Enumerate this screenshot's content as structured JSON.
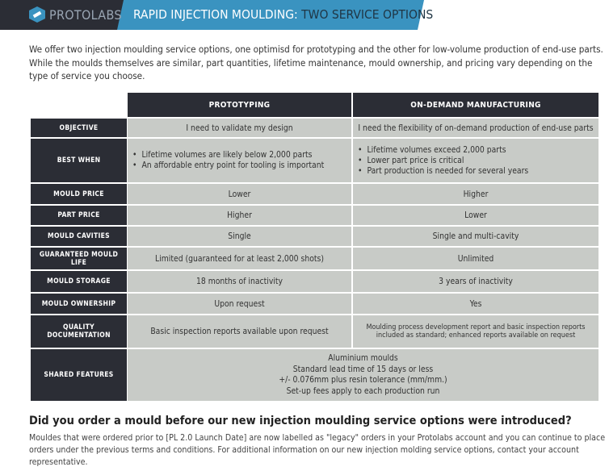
{
  "header": {
    "brand": "PROTOLABS",
    "title_main": "RAPID INJECTION MOULDING: ",
    "title_sub": "TWO SERVICE OPTIONS"
  },
  "intro": "We offer two injection moulding service options, one optimisd for prototyping and the other for low-volume production of end-use parts. While the moulds themselves are similar, part quantities, lifetime maintenance, mould ownership, and pricing vary depending on the type of service you choose.",
  "table": {
    "columns": [
      "PROTOTYPING",
      "ON-DEMAND MANUFACTURING"
    ],
    "rows": [
      {
        "label": "OBJECTIVE",
        "proto": "I need to validate my design",
        "od": "I need the flexibility of on-demand production of end-use parts"
      },
      {
        "label": "BEST WHEN",
        "proto_list": [
          "Lifetime volumes are likely below 2,000 parts",
          "An affordable entry point for tooling is important"
        ],
        "od_list": [
          "Lifetime volumes exceed 2,000 parts",
          "Lower part price is critical",
          "Part production is needed for several years"
        ]
      },
      {
        "label": "MOULD PRICE",
        "proto": "Lower",
        "od": "Higher"
      },
      {
        "label": "PART PRICE",
        "proto": "Higher",
        "od": "Lower"
      },
      {
        "label": "MOULD CAVITIES",
        "proto": "Single",
        "od": "Single and multi-cavity"
      },
      {
        "label": "GUARANTEED MOULD LIFE",
        "proto": "Limited (guaranteed for at least 2,000 shots)",
        "od": "Unlimited"
      },
      {
        "label": "MOULD STORAGE",
        "proto": "18 months of inactivity",
        "od": "3 years of inactivity"
      },
      {
        "label": "MOULD OWNERSHIP",
        "proto": "Upon request",
        "od": "Yes"
      },
      {
        "label": "QUALITY DOCUMENTATION",
        "proto": "Basic inspection reports available upon request",
        "od": "Moulding process development report and basic inspection reports included as standard; enhanced reports available on request"
      },
      {
        "label": "SHARED FEATURES",
        "shared": [
          "Aluminium moulds",
          "Standard lead time of 15 days or less",
          "+/- 0.076mm plus resin tolerance (mm/mm.)",
          "Set-up fees apply to each production run"
        ]
      }
    ]
  },
  "legacy": {
    "heading": "Did you order a mould before our new injection moulding service options were introduced?",
    "body": "Mouldes that were ordered prior to [PL 2.0 Launch Date] are now labelled as \"legacy\" orders in your Protolabs account and you can continue to place orders under the previous terms and conditions. For additional information on our new injection molding service options, contact your account representative."
  },
  "colors": {
    "dark": "#2b2d35",
    "accent": "#3a93c0",
    "cell": "#c8cbc7"
  }
}
